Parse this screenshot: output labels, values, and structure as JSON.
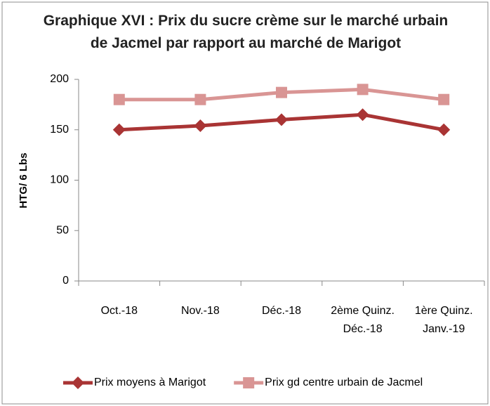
{
  "chart_data": {
    "type": "line",
    "title": "Graphique XVI : Prix du sucre crème sur le marché urbain de Jacmel par rapport au marché de Marigot",
    "y_label": "HTG/ 6 Lbs",
    "categories": [
      "Oct.-18",
      "Nov.-18",
      "Déc.-18",
      "2ème  Quinz. Déc.-18",
      "1ère  Quinz. Janv.-19"
    ],
    "series": [
      {
        "name": "Prix moyens à Marigot",
        "color": "#a93434",
        "marker": "diamond",
        "values": [
          150,
          154,
          160,
          165,
          150
        ]
      },
      {
        "name": "Prix gd centre urbain de Jacmel",
        "color": "#d99594",
        "marker": "square",
        "values": [
          180,
          180,
          187,
          190,
          180
        ]
      }
    ],
    "ylim": [
      0,
      200
    ],
    "yticks": [
      0,
      50,
      100,
      150,
      200
    ],
    "grid": false,
    "legend": "bottom"
  }
}
